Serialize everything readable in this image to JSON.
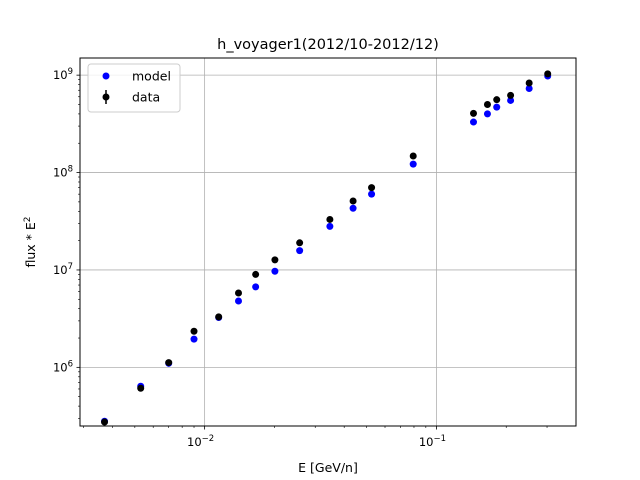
{
  "chart_data": {
    "type": "scatter",
    "title": "h_voyager1(2012/10-2012/12)",
    "xlabel": "E [GeV/n]",
    "ylabel_main": "flux * E",
    "ylabel_sup": "2",
    "xscale": "log",
    "yscale": "log",
    "xlim": [
      0.0029,
      0.4
    ],
    "ylim": [
      250000,
      1500000000
    ],
    "grid": true,
    "legend_position": "upper left",
    "x_major_ticks": [
      {
        "value": 0.01,
        "base": "10",
        "exp": "−2"
      },
      {
        "value": 0.1,
        "base": "10",
        "exp": "−1"
      }
    ],
    "y_major_ticks": [
      {
        "value": 1000000,
        "base": "10",
        "exp": "6"
      },
      {
        "value": 10000000,
        "base": "10",
        "exp": "7"
      },
      {
        "value": 100000000,
        "base": "10",
        "exp": "8"
      },
      {
        "value": 1000000000,
        "base": "10",
        "exp": "9"
      }
    ],
    "series": [
      {
        "name": "model",
        "color": "#0000ff",
        "marker": "circle",
        "x": [
          0.0037,
          0.0053,
          0.007,
          0.009,
          0.0115,
          0.014,
          0.0166,
          0.0201,
          0.0257,
          0.0347,
          0.0437,
          0.0525,
          0.0794,
          0.1445,
          0.166,
          0.182,
          0.2089,
          0.2512,
          0.302
        ],
        "y": [
          280000,
          640000,
          1100000,
          1950000,
          3250000,
          4800000,
          6700000,
          9700000,
          15800000,
          28000000,
          43000000,
          60000000,
          122000000,
          330000000,
          400000000,
          470000000,
          550000000,
          730000000,
          980000000
        ]
      },
      {
        "name": "data",
        "color": "#000000",
        "marker": "circle",
        "errorbars": true,
        "x": [
          0.0037,
          0.0053,
          0.007,
          0.009,
          0.0115,
          0.014,
          0.0166,
          0.0201,
          0.0257,
          0.0347,
          0.0437,
          0.0525,
          0.0794,
          0.1445,
          0.166,
          0.182,
          0.2089,
          0.2512,
          0.302
        ],
        "y": [
          275000,
          610000,
          1120000,
          2350000,
          3300000,
          5800000,
          9000000,
          12700000,
          19000000,
          33000000,
          51000000,
          70000000,
          148000000,
          405000000,
          500000000,
          560000000,
          620000000,
          830000000,
          1030000000
        ]
      }
    ]
  },
  "colors": {
    "grid": "#b0b0b0",
    "axes": "#000000",
    "legend_border": "#cccccc"
  }
}
